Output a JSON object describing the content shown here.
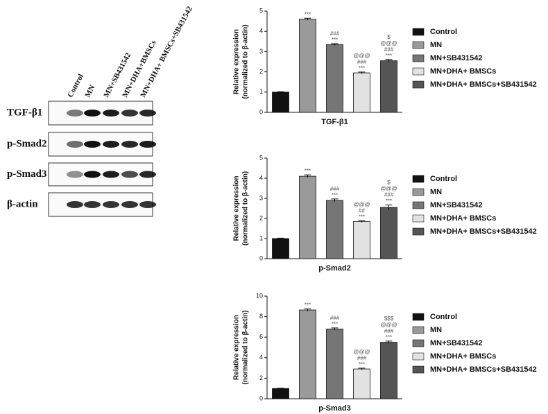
{
  "blot": {
    "lanes": [
      "Control",
      "MN",
      "MN+SB431542",
      "MN+DHA+BMSCs",
      "MN+DHA+ BMSCs+SB431542"
    ],
    "rows": [
      "TGF-β1",
      "p-Smad2",
      "p-Smad3",
      "β-actin"
    ]
  },
  "chart_data": [
    {
      "type": "bar",
      "xlabel": "TGF-β1",
      "ylabel": [
        "Relative expression",
        "(normalized to β-actin)"
      ],
      "categories": [
        "Control",
        "MN",
        "MN+SB431542",
        "MN+DHA+ BMSCs",
        "MN+DHA+ BMSCs+SB431542"
      ],
      "colors": [
        "#111111",
        "#9a9a9a",
        "#767676",
        "#e2e2e2",
        "#555555"
      ],
      "values": [
        1.0,
        4.6,
        3.35,
        1.95,
        2.55
      ],
      "errors": [
        0.02,
        0.05,
        0.04,
        0.04,
        0.06
      ],
      "annotations": [
        [],
        [
          "***"
        ],
        [
          "###",
          "***"
        ],
        [
          "@@@",
          "###",
          "***"
        ],
        [
          "$",
          "@@@",
          "###",
          "***"
        ]
      ],
      "ylim": [
        0,
        5
      ],
      "yticks": [
        0,
        1,
        2,
        3,
        4,
        5
      ]
    },
    {
      "type": "bar",
      "xlabel": "p-Smad2",
      "ylabel": [
        "Relative expression",
        "(normalized to β-actin)"
      ],
      "categories": [
        "Control",
        "MN",
        "MN+SB431542",
        "MN+DHA+ BMSCs",
        "MN+DHA+ BMSCs+SB431542"
      ],
      "colors": [
        "#111111",
        "#9a9a9a",
        "#767676",
        "#e2e2e2",
        "#555555"
      ],
      "values": [
        1.0,
        4.1,
        2.9,
        1.85,
        2.55
      ],
      "errors": [
        0.02,
        0.07,
        0.07,
        0.04,
        0.12
      ],
      "annotations": [
        [],
        [
          "***"
        ],
        [
          "###",
          "***"
        ],
        [
          "@@@",
          "##",
          "***"
        ],
        [
          "$",
          "@@@",
          "###",
          "***"
        ]
      ],
      "ylim": [
        0,
        5
      ],
      "yticks": [
        0,
        1,
        2,
        3,
        4,
        5
      ]
    },
    {
      "type": "bar",
      "xlabel": "p-Smad3",
      "ylabel": [
        "Relative expression",
        "(normalized to β-actin)"
      ],
      "categories": [
        "Control",
        "MN",
        "MN+SB431542",
        "MN+DHA+ BMSCs",
        "MN+DHA+ BMSCs+SB431542"
      ],
      "colors": [
        "#111111",
        "#9a9a9a",
        "#767676",
        "#e2e2e2",
        "#555555"
      ],
      "values": [
        1.0,
        8.65,
        6.8,
        2.9,
        5.5
      ],
      "errors": [
        0.03,
        0.12,
        0.1,
        0.08,
        0.12
      ],
      "annotations": [
        [],
        [
          "***"
        ],
        [
          "###",
          "***"
        ],
        [
          "@@@",
          "###",
          "***"
        ],
        [
          "$$$",
          "@@@",
          "###",
          "***"
        ]
      ],
      "ylim": [
        0,
        10
      ],
      "yticks": [
        0,
        2,
        4,
        6,
        8,
        10
      ]
    }
  ]
}
